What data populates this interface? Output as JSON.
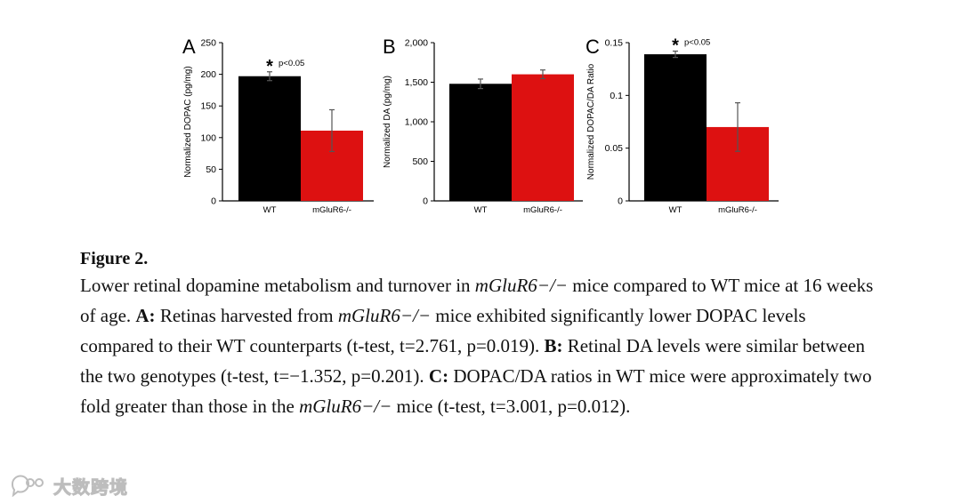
{
  "chart_data": [
    {
      "type": "bar",
      "panel": "A",
      "ylabel": "Normalized DOPAC (pg/mg)",
      "categories": [
        "WT",
        "mGluR6-/-"
      ],
      "values": [
        197,
        111
      ],
      "errors": [
        7,
        33
      ],
      "ylim": [
        0,
        250
      ],
      "yticks": [
        0,
        50,
        100,
        150,
        200,
        250
      ],
      "ytick_labels": [
        "0",
        "50",
        "100",
        "150",
        "200",
        "250"
      ],
      "colors": [
        "#000000",
        "#dd1111"
      ],
      "annotation": {
        "star": "*",
        "text": "p<0.05",
        "category": 0
      }
    },
    {
      "type": "bar",
      "panel": "B",
      "ylabel": "Normalized DA (pg/mg)",
      "categories": [
        "WT",
        "mGluR6-/-"
      ],
      "values": [
        1480,
        1600
      ],
      "errors": [
        60,
        55
      ],
      "ylim": [
        0,
        2000
      ],
      "yticks": [
        0,
        500,
        1000,
        1500,
        2000
      ],
      "ytick_labels": [
        "0",
        "500",
        "1,000",
        "1,500",
        "2,000"
      ],
      "colors": [
        "#000000",
        "#dd1111"
      ],
      "annotation": null
    },
    {
      "type": "bar",
      "panel": "C",
      "ylabel": "Normalized DOPAC/DA Ratio",
      "categories": [
        "WT",
        "mGluR6-/-"
      ],
      "values": [
        0.139,
        0.07
      ],
      "errors": [
        0.003,
        0.023
      ],
      "ylim": [
        0,
        0.15
      ],
      "yticks": [
        0,
        0.05,
        0.1,
        0.15
      ],
      "ytick_labels": [
        "0",
        "0.05",
        "0.1",
        "0.15"
      ],
      "colors": [
        "#000000",
        "#dd1111"
      ],
      "annotation": {
        "star": "*",
        "text": "p<0.05",
        "category": 0
      }
    }
  ],
  "caption": {
    "figure_label": "Figure 2.",
    "s1": "Lower retinal dopamine metabolism and turnover in ",
    "gene": "mGluR6−/−",
    "s2": " mice compared to WT mice at 16 weeks of age. ",
    "labelA": "A:",
    "s3": " Retinas harvested from ",
    "s4": " mice exhibited significantly lower DOPAC levels compared to their WT counterparts (t-test, t=2.761, p=0.019). ",
    "labelB": "B:",
    "s5": " Retinal DA levels were similar between the two genotypes (t-test, t=−1.352, p=0.201). ",
    "labelC": "C:",
    "s6": " DOPAC/DA ratios in WT mice were approximately two fold greater than those in the ",
    "s7": " mice (t-test, t=3.001, p=0.012)."
  },
  "watermark": {
    "text": "大数跨境",
    "icon": "chat-bubble-logo"
  }
}
